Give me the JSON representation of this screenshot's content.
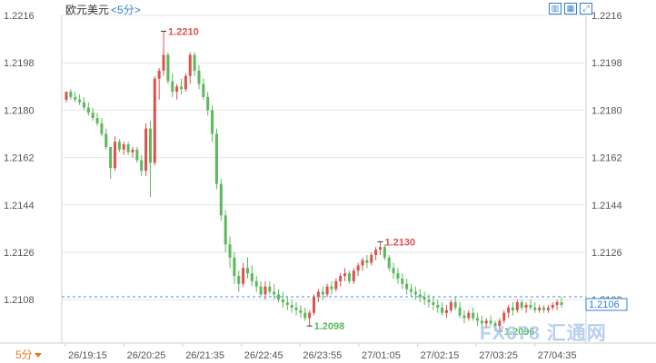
{
  "header": {
    "title": "欧元美元",
    "period": "<5分>"
  },
  "toolbar": {
    "items": [
      {
        "icon": "bar-chart-icon",
        "glyph": "▥"
      },
      {
        "icon": "candlestick-icon",
        "glyph": "▦"
      },
      {
        "icon": "fullscreen-icon",
        "glyph": "⤢"
      }
    ]
  },
  "period_selector": {
    "label": "5分"
  },
  "watermark": {
    "text": "FX678 汇通网"
  },
  "colors": {
    "up": "#d9534f",
    "down": "#5cb85c",
    "grid": "#e6e6e6",
    "ref_line": "#4a90d9",
    "axis_text": "#555555",
    "price_box": "#2f7fd0"
  },
  "chart_data": {
    "type": "candlestick",
    "symbol": "欧元美元",
    "interval": "5分",
    "ylim": [
      1.209,
      1.2216
    ],
    "y_ticks": [
      "1.2216",
      "1.2198",
      "1.2180",
      "1.2162",
      "1.2144",
      "1.2126",
      "1.2108"
    ],
    "x_ticks": [
      "26/19:15",
      "26/20:25",
      "26/21:35",
      "26/22:45",
      "26/23:55",
      "27/01:05",
      "27/02:15",
      "27/03:25",
      "27/04:35"
    ],
    "current_price": "1.2106",
    "annotations": [
      {
        "label": "1.2210",
        "kind": "high",
        "index": 22
      },
      {
        "label": "1.2098",
        "kind": "low",
        "index": 55
      },
      {
        "label": "1.2130",
        "kind": "high",
        "index": 71
      },
      {
        "label": "1.2096",
        "kind": "low",
        "index": 98
      }
    ],
    "candles": [
      [
        1.2184,
        1.2187,
        1.2183,
        1.2187
      ],
      [
        1.2187,
        1.2188,
        1.2184,
        1.2185
      ],
      [
        1.2185,
        1.2187,
        1.2183,
        1.2184
      ],
      [
        1.2184,
        1.2186,
        1.2182,
        1.2183
      ],
      [
        1.2183,
        1.2185,
        1.218,
        1.2181
      ],
      [
        1.2181,
        1.2183,
        1.2178,
        1.2179
      ],
      [
        1.2179,
        1.2181,
        1.2176,
        1.2177
      ],
      [
        1.2177,
        1.2179,
        1.2174,
        1.2175
      ],
      [
        1.2175,
        1.2177,
        1.217,
        1.2171
      ],
      [
        1.2171,
        1.2173,
        1.2165,
        1.2166
      ],
      [
        1.2166,
        1.2166,
        1.2154,
        1.2158
      ],
      [
        1.2158,
        1.217,
        1.2157,
        1.2168
      ],
      [
        1.2168,
        1.2169,
        1.2164,
        1.2165
      ],
      [
        1.2165,
        1.2168,
        1.2163,
        1.2167
      ],
      [
        1.2167,
        1.2168,
        1.2163,
        1.2164
      ],
      [
        1.2164,
        1.2166,
        1.2162,
        1.2165
      ],
      [
        1.2165,
        1.2166,
        1.216,
        1.2161
      ],
      [
        1.2161,
        1.2163,
        1.2155,
        1.2157
      ],
      [
        1.2157,
        1.2175,
        1.2155,
        1.2173
      ],
      [
        1.2173,
        1.2176,
        1.2147,
        1.216
      ],
      [
        1.216,
        1.2193,
        1.2159,
        1.2192
      ],
      [
        1.2192,
        1.2196,
        1.2184,
        1.2195
      ],
      [
        1.2195,
        1.221,
        1.2193,
        1.2201
      ],
      [
        1.2201,
        1.2202,
        1.219,
        1.2191
      ],
      [
        1.2191,
        1.2194,
        1.2185,
        1.2187
      ],
      [
        1.2187,
        1.219,
        1.2184,
        1.2189
      ],
      [
        1.2189,
        1.2192,
        1.2186,
        1.2188
      ],
      [
        1.2188,
        1.2194,
        1.2187,
        1.2193
      ],
      [
        1.2193,
        1.2202,
        1.219,
        1.2201
      ],
      [
        1.2201,
        1.2202,
        1.2193,
        1.2195
      ],
      [
        1.2195,
        1.2197,
        1.2188,
        1.219
      ],
      [
        1.219,
        1.2192,
        1.2184,
        1.2185
      ],
      [
        1.2185,
        1.2187,
        1.2178,
        1.218
      ],
      [
        1.218,
        1.2182,
        1.2168,
        1.2171
      ],
      [
        1.2171,
        1.2173,
        1.215,
        1.2152
      ],
      [
        1.2152,
        1.2154,
        1.2138,
        1.214
      ],
      [
        1.214,
        1.2142,
        1.2126,
        1.2129
      ],
      [
        1.2129,
        1.2132,
        1.212,
        1.2124
      ],
      [
        1.2124,
        1.2126,
        1.2114,
        1.2117
      ],
      [
        1.2117,
        1.2119,
        1.2111,
        1.2114
      ],
      [
        1.2114,
        1.2122,
        1.2113,
        1.212
      ],
      [
        1.212,
        1.2124,
        1.2116,
        1.2118
      ],
      [
        1.2118,
        1.2121,
        1.2113,
        1.2115
      ],
      [
        1.2115,
        1.2117,
        1.2111,
        1.2113
      ],
      [
        1.2113,
        1.2115,
        1.2109,
        1.211
      ],
      [
        1.211,
        1.2115,
        1.2108,
        1.2113
      ],
      [
        1.2113,
        1.2115,
        1.211,
        1.2111
      ],
      [
        1.2111,
        1.2114,
        1.2108,
        1.211
      ],
      [
        1.211,
        1.2112,
        1.2107,
        1.2108
      ],
      [
        1.2108,
        1.2111,
        1.2105,
        1.2107
      ],
      [
        1.2107,
        1.2109,
        1.2104,
        1.2106
      ],
      [
        1.2106,
        1.2108,
        1.2103,
        1.2105
      ],
      [
        1.2105,
        1.2107,
        1.2102,
        1.2104
      ],
      [
        1.2104,
        1.2106,
        1.2101,
        1.2103
      ],
      [
        1.2103,
        1.2105,
        1.21,
        1.2101
      ],
      [
        1.2101,
        1.2104,
        1.2098,
        1.2103
      ],
      [
        1.2103,
        1.211,
        1.2102,
        1.2109
      ],
      [
        1.2109,
        1.2112,
        1.2107,
        1.2111
      ],
      [
        1.2111,
        1.2113,
        1.2108,
        1.211
      ],
      [
        1.211,
        1.2114,
        1.2109,
        1.2113
      ],
      [
        1.2113,
        1.2115,
        1.211,
        1.2112
      ],
      [
        1.2112,
        1.2116,
        1.2111,
        1.2115
      ],
      [
        1.2115,
        1.2118,
        1.2113,
        1.2117
      ],
      [
        1.2117,
        1.212,
        1.2115,
        1.2118
      ],
      [
        1.2118,
        1.2119,
        1.2114,
        1.2115
      ],
      [
        1.2115,
        1.212,
        1.2114,
        1.2119
      ],
      [
        1.2119,
        1.2122,
        1.2117,
        1.2121
      ],
      [
        1.2121,
        1.2124,
        1.2119,
        1.2123
      ],
      [
        1.2123,
        1.2125,
        1.212,
        1.2122
      ],
      [
        1.2122,
        1.2126,
        1.2121,
        1.2125
      ],
      [
        1.2125,
        1.2128,
        1.2123,
        1.2127
      ],
      [
        1.2127,
        1.213,
        1.2125,
        1.2128
      ],
      [
        1.2128,
        1.2129,
        1.2123,
        1.2124
      ],
      [
        1.2124,
        1.2125,
        1.2119,
        1.212
      ],
      [
        1.212,
        1.2122,
        1.2116,
        1.2118
      ],
      [
        1.2118,
        1.212,
        1.2114,
        1.2116
      ],
      [
        1.2116,
        1.2118,
        1.2112,
        1.2114
      ],
      [
        1.2114,
        1.2116,
        1.211,
        1.2112
      ],
      [
        1.2112,
        1.2114,
        1.2109,
        1.2111
      ],
      [
        1.2111,
        1.2113,
        1.2108,
        1.211
      ],
      [
        1.211,
        1.2112,
        1.2107,
        1.2109
      ],
      [
        1.2109,
        1.2111,
        1.2106,
        1.2108
      ],
      [
        1.2108,
        1.211,
        1.2105,
        1.2107
      ],
      [
        1.2107,
        1.2109,
        1.2104,
        1.2106
      ],
      [
        1.2106,
        1.2108,
        1.2103,
        1.2105
      ],
      [
        1.2105,
        1.2107,
        1.2102,
        1.2103
      ],
      [
        1.2103,
        1.2106,
        1.2101,
        1.2104
      ],
      [
        1.2104,
        1.2108,
        1.2103,
        1.2107
      ],
      [
        1.2107,
        1.2109,
        1.2104,
        1.2105
      ],
      [
        1.2105,
        1.2107,
        1.2101,
        1.2102
      ],
      [
        1.2102,
        1.2104,
        1.2099,
        1.2101
      ],
      [
        1.2101,
        1.2104,
        1.21,
        1.2103
      ],
      [
        1.2103,
        1.2105,
        1.21,
        1.2101
      ],
      [
        1.2101,
        1.2103,
        1.2098,
        1.21
      ],
      [
        1.21,
        1.2102,
        1.2097,
        1.2099
      ],
      [
        1.2099,
        1.2101,
        1.2097,
        1.21
      ],
      [
        1.21,
        1.2102,
        1.2098,
        1.2099
      ],
      [
        1.2099,
        1.21,
        1.2096,
        1.2098
      ],
      [
        1.2098,
        1.2101,
        1.2096,
        1.21
      ],
      [
        1.21,
        1.2104,
        1.2099,
        1.2103
      ],
      [
        1.2103,
        1.2106,
        1.2101,
        1.2105
      ],
      [
        1.2105,
        1.2107,
        1.2102,
        1.2104
      ],
      [
        1.2104,
        1.2108,
        1.2103,
        1.2107
      ],
      [
        1.2107,
        1.2108,
        1.2104,
        1.2105
      ],
      [
        1.2105,
        1.2107,
        1.2103,
        1.2106
      ],
      [
        1.2106,
        1.2108,
        1.2104,
        1.2105
      ],
      [
        1.2105,
        1.2107,
        1.2103,
        1.2104
      ],
      [
        1.2104,
        1.2106,
        1.2103,
        1.2105
      ],
      [
        1.2105,
        1.2106,
        1.2103,
        1.2104
      ],
      [
        1.2104,
        1.2106,
        1.2103,
        1.2105
      ],
      [
        1.2105,
        1.2107,
        1.2104,
        1.2106
      ],
      [
        1.2106,
        1.2108,
        1.2104,
        1.2107
      ],
      [
        1.2107,
        1.2109,
        1.2105,
        1.2106
      ]
    ]
  }
}
